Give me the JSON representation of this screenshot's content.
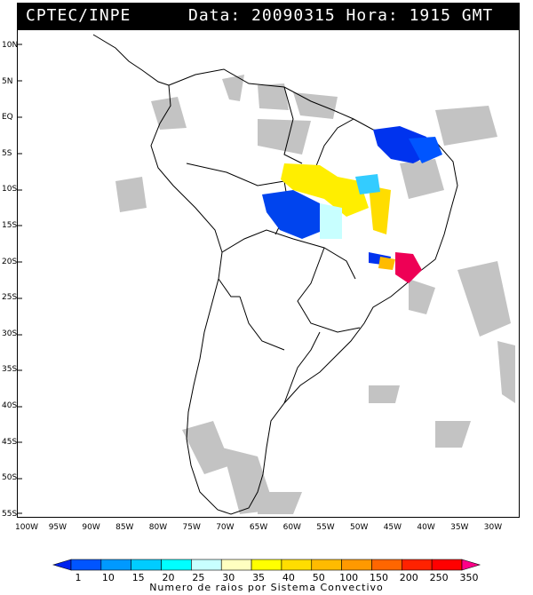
{
  "header": {
    "source": "CPTEC/INPE",
    "datetime": "Data: 20090315 Hora: 1915 GMT"
  },
  "axes": {
    "lat_labels": [
      "10N",
      "5N",
      "EQ",
      "5S",
      "10S",
      "15S",
      "20S",
      "25S",
      "30S",
      "35S",
      "40S",
      "45S",
      "50S",
      "55S"
    ],
    "lon_labels": [
      "100W",
      "95W",
      "90W",
      "85W",
      "80W",
      "75W",
      "70W",
      "65W",
      "60W",
      "55W",
      "50W",
      "45W",
      "40W",
      "35W",
      "30W"
    ]
  },
  "colorbar": {
    "caption": "Numero de raios por Sistema Convectivo",
    "levels": [
      "1",
      "10",
      "15",
      "20",
      "25",
      "30",
      "35",
      "40",
      "50",
      "100",
      "150",
      "200",
      "250",
      "350"
    ],
    "colors": [
      "#0022ee",
      "#0055ff",
      "#0099ff",
      "#00ccff",
      "#00ffff",
      "#c8ffff",
      "#ffffc0",
      "#ffff00",
      "#ffdd00",
      "#ffbb00",
      "#ff9900",
      "#ff6600",
      "#ff2200",
      "#ff0000",
      "#ff0088"
    ]
  },
  "legend_semantics": {
    "cloud_color": "#b4b4b4",
    "coast_color": "#000000"
  }
}
